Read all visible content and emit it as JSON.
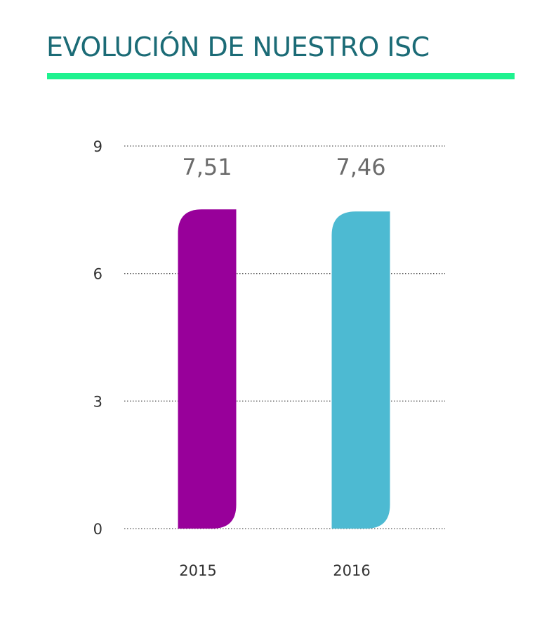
{
  "colors": {
    "title": "#1b6b76",
    "title_rule": "#1ef28f",
    "grid": "#555555"
  },
  "chart_data": {
    "type": "bar",
    "title": "EVOLUCIÓN DE NUESTRO ISC",
    "categories": [
      "2015",
      "2016"
    ],
    "values": [
      7.51,
      7.46
    ],
    "value_labels": [
      "7,51",
      "7,46"
    ],
    "bar_colors": [
      "#98009a",
      "#4dbad2"
    ],
    "ylim": [
      0,
      9
    ],
    "yticks": [
      0,
      3,
      6,
      9
    ],
    "ytick_labels": [
      "0",
      "3",
      "6",
      "9"
    ],
    "xlabel": "",
    "ylabel": "",
    "grid": true,
    "legend": false
  }
}
